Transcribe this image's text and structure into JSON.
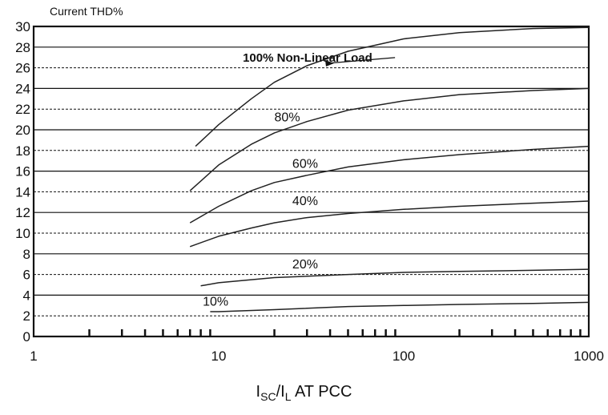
{
  "chart_data": {
    "type": "line",
    "x_scale": "log",
    "xlim": [
      1,
      1000
    ],
    "ylim": [
      0,
      30
    ],
    "ylabel": "Current THD%",
    "xlabel": {
      "i1": "I",
      "s1": "SC",
      "slash": "/",
      "i2": "I",
      "s2": "L",
      "rest": " AT PCC"
    },
    "x_ticks_major": [
      1,
      10,
      100,
      1000
    ],
    "x_tick_labels": [
      "1",
      "10",
      "100",
      "1000"
    ],
    "y_ticks": [
      0,
      2,
      4,
      6,
      8,
      10,
      12,
      14,
      16,
      18,
      20,
      22,
      24,
      26,
      28,
      30
    ],
    "grid": "horizontal, alternating solid and dashed",
    "series": [
      {
        "name": "100% Non-Linear Load",
        "points": [
          [
            7.5,
            18.4
          ],
          [
            10,
            20.5
          ],
          [
            15,
            23.0
          ],
          [
            20,
            24.6
          ],
          [
            30,
            26.2
          ],
          [
            50,
            27.6
          ],
          [
            100,
            28.8
          ],
          [
            200,
            29.4
          ],
          [
            500,
            29.8
          ],
          [
            1000,
            29.9
          ]
        ]
      },
      {
        "name": "80%",
        "points": [
          [
            7,
            14.1
          ],
          [
            10,
            16.6
          ],
          [
            15,
            18.6
          ],
          [
            20,
            19.7
          ],
          [
            30,
            20.8
          ],
          [
            50,
            21.9
          ],
          [
            100,
            22.8
          ],
          [
            200,
            23.4
          ],
          [
            500,
            23.8
          ],
          [
            1000,
            24.0
          ]
        ]
      },
      {
        "name": "60%",
        "points": [
          [
            7,
            11.0
          ],
          [
            10,
            12.6
          ],
          [
            15,
            14.1
          ],
          [
            20,
            14.9
          ],
          [
            30,
            15.6
          ],
          [
            50,
            16.4
          ],
          [
            100,
            17.1
          ],
          [
            200,
            17.6
          ],
          [
            500,
            18.1
          ],
          [
            1000,
            18.4
          ]
        ]
      },
      {
        "name": "40%",
        "points": [
          [
            7,
            8.7
          ],
          [
            10,
            9.7
          ],
          [
            15,
            10.5
          ],
          [
            20,
            11.0
          ],
          [
            30,
            11.5
          ],
          [
            50,
            11.9
          ],
          [
            100,
            12.3
          ],
          [
            200,
            12.6
          ],
          [
            500,
            12.9
          ],
          [
            1000,
            13.1
          ]
        ]
      },
      {
        "name": "20%",
        "points": [
          [
            8,
            4.9
          ],
          [
            10,
            5.2
          ],
          [
            20,
            5.7
          ],
          [
            50,
            6.0
          ],
          [
            100,
            6.2
          ],
          [
            200,
            6.3
          ],
          [
            500,
            6.4
          ],
          [
            1000,
            6.5
          ]
        ]
      },
      {
        "name": "10%",
        "points": [
          [
            9,
            2.4
          ],
          [
            10,
            2.4
          ],
          [
            20,
            2.6
          ],
          [
            50,
            2.9
          ],
          [
            100,
            3.0
          ],
          [
            200,
            3.1
          ],
          [
            500,
            3.2
          ],
          [
            1000,
            3.3
          ]
        ]
      }
    ],
    "annotations": [
      {
        "text": "100% Non-Linear Load",
        "x": 13.5,
        "y": 26.6,
        "bold": true,
        "arrow_to": [
          42,
          26.2
        ]
      },
      {
        "text": "80%",
        "x": 20,
        "y": 20.8
      },
      {
        "text": "60%",
        "x": 25,
        "y": 16.3
      },
      {
        "text": "40%",
        "x": 25,
        "y": 12.7
      },
      {
        "text": "20%",
        "x": 25,
        "y": 6.6
      },
      {
        "text": "10%",
        "x": 8.2,
        "y": 3.0
      }
    ]
  }
}
